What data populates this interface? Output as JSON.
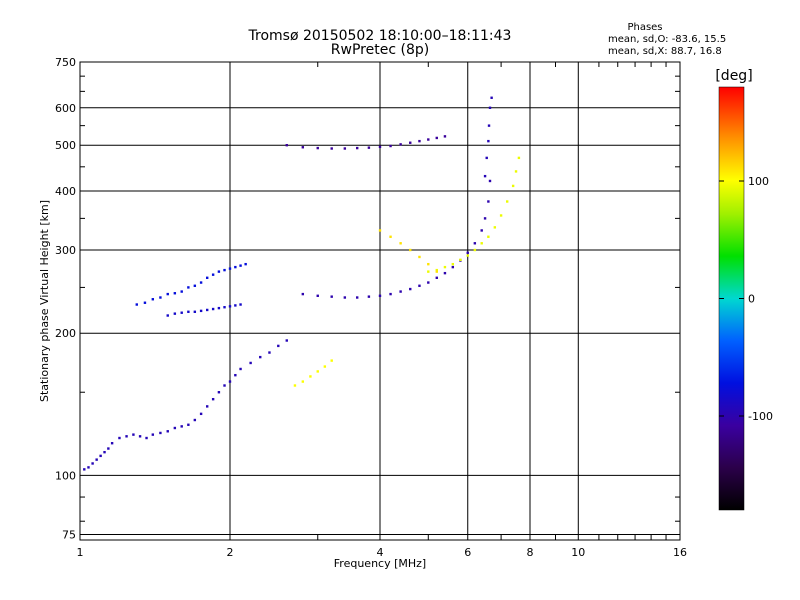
{
  "chart_data": {
    "type": "scatter",
    "title": "Tromsø 20150502 18:10:00–18:11:43",
    "subtitle": "RwPretec (8p)",
    "xlabel": "Frequency [MHz]",
    "ylabel": "Stationary phase Virtual Height [km]",
    "x_scale": "log",
    "y_scale": "log",
    "xlim": [
      1,
      16
    ],
    "ylim": [
      73,
      750
    ],
    "x_ticks": [
      1,
      2,
      4,
      6,
      8,
      10,
      16
    ],
    "y_ticks": [
      75,
      100,
      200,
      300,
      400,
      500,
      600,
      750
    ],
    "grid": true,
    "phases_box": {
      "heading": "Phases",
      "line1": "mean, sd,O: -83.6, 15.5",
      "line2": "mean, sd,X:  88.7, 16.8"
    },
    "colorbar": {
      "label": "[deg]",
      "range": [
        -180,
        180
      ],
      "ticks": [
        100,
        0,
        -100
      ]
    },
    "series": [
      {
        "points": [
          [
            1.02,
            103
          ],
          [
            1.04,
            104
          ],
          [
            1.06,
            106
          ],
          [
            1.08,
            108
          ],
          [
            1.1,
            110
          ],
          [
            1.12,
            112
          ],
          [
            1.14,
            114
          ],
          [
            1.16,
            117
          ],
          [
            1.2,
            120
          ],
          [
            1.24,
            121
          ],
          [
            1.28,
            122
          ],
          [
            1.32,
            121
          ],
          [
            1.36,
            120
          ],
          [
            1.4,
            122
          ],
          [
            1.45,
            123
          ],
          [
            1.5,
            124
          ],
          [
            1.55,
            126
          ],
          [
            1.6,
            127
          ],
          [
            1.65,
            128
          ],
          [
            1.7,
            131
          ],
          [
            1.75,
            135
          ],
          [
            1.8,
            140
          ],
          [
            1.85,
            145
          ],
          [
            1.9,
            150
          ],
          [
            1.95,
            155
          ],
          [
            2.0,
            158
          ],
          [
            2.05,
            163
          ],
          [
            2.1,
            168
          ],
          [
            2.2,
            173
          ],
          [
            2.3,
            178
          ],
          [
            2.4,
            182
          ],
          [
            2.5,
            188
          ],
          [
            2.6,
            193
          ]
        ],
        "phase": -95
      },
      {
        "points": [
          [
            1.3,
            230
          ],
          [
            1.35,
            232
          ],
          [
            1.4,
            236
          ],
          [
            1.45,
            238
          ],
          [
            1.5,
            242
          ],
          [
            1.55,
            243
          ],
          [
            1.6,
            245
          ],
          [
            1.65,
            250
          ],
          [
            1.7,
            252
          ],
          [
            1.75,
            256
          ],
          [
            1.8,
            262
          ],
          [
            1.85,
            266
          ],
          [
            1.9,
            270
          ],
          [
            1.95,
            272
          ],
          [
            2.0,
            274
          ],
          [
            2.05,
            276
          ],
          [
            2.1,
            278
          ],
          [
            2.15,
            280
          ]
        ],
        "phase": -75
      },
      {
        "points": [
          [
            1.5,
            218
          ],
          [
            1.55,
            220
          ],
          [
            1.6,
            221
          ],
          [
            1.65,
            222
          ],
          [
            1.7,
            222
          ],
          [
            1.75,
            223
          ],
          [
            1.8,
            224
          ],
          [
            1.85,
            225
          ],
          [
            1.9,
            226
          ],
          [
            1.95,
            227
          ],
          [
            2.0,
            228
          ],
          [
            2.05,
            229
          ],
          [
            2.1,
            230
          ]
        ],
        "phase": -85
      },
      {
        "points": [
          [
            2.8,
            242
          ],
          [
            3.0,
            240
          ],
          [
            3.2,
            239
          ],
          [
            3.4,
            238
          ],
          [
            3.6,
            238
          ],
          [
            3.8,
            239
          ],
          [
            4.0,
            240
          ],
          [
            4.2,
            242
          ],
          [
            4.4,
            245
          ],
          [
            4.6,
            248
          ],
          [
            4.8,
            252
          ],
          [
            5.0,
            256
          ],
          [
            5.2,
            262
          ],
          [
            5.4,
            268
          ],
          [
            5.6,
            276
          ],
          [
            5.8,
            285
          ],
          [
            6.0,
            296
          ],
          [
            6.2,
            310
          ],
          [
            6.4,
            330
          ],
          [
            6.5,
            350
          ],
          [
            6.6,
            380
          ],
          [
            6.65,
            420
          ]
        ],
        "phase": -100
      },
      {
        "points": [
          [
            2.6,
            500
          ],
          [
            2.8,
            495
          ],
          [
            3.0,
            493
          ],
          [
            3.2,
            492
          ],
          [
            3.4,
            492
          ],
          [
            3.6,
            493
          ],
          [
            3.8,
            494
          ],
          [
            4.0,
            496
          ],
          [
            4.2,
            498
          ],
          [
            4.4,
            502
          ],
          [
            4.6,
            506
          ],
          [
            4.8,
            510
          ],
          [
            5.0,
            514
          ],
          [
            5.2,
            518
          ],
          [
            5.4,
            522
          ]
        ],
        "phase": -110
      },
      {
        "points": [
          [
            6.5,
            430
          ],
          [
            6.55,
            470
          ],
          [
            6.6,
            510
          ],
          [
            6.62,
            550
          ],
          [
            6.65,
            600
          ],
          [
            6.7,
            630
          ]
        ],
        "phase": -95
      },
      {
        "points": [
          [
            5.0,
            270
          ],
          [
            5.2,
            272
          ],
          [
            5.4,
            276
          ],
          [
            5.6,
            280
          ],
          [
            5.8,
            286
          ],
          [
            6.0,
            292
          ],
          [
            6.2,
            300
          ],
          [
            6.4,
            310
          ],
          [
            6.6,
            320
          ],
          [
            6.8,
            335
          ],
          [
            7.0,
            355
          ],
          [
            7.2,
            380
          ],
          [
            7.4,
            410
          ],
          [
            7.5,
            440
          ],
          [
            7.6,
            470
          ]
        ],
        "phase": 95
      },
      {
        "points": [
          [
            4.0,
            330
          ],
          [
            4.2,
            320
          ],
          [
            4.4,
            310
          ],
          [
            4.6,
            300
          ],
          [
            4.8,
            290
          ],
          [
            5.0,
            280
          ],
          [
            5.2,
            270
          ]
        ],
        "phase": 110
      },
      {
        "points": [
          [
            2.7,
            155
          ],
          [
            2.8,
            158
          ],
          [
            2.9,
            162
          ],
          [
            3.0,
            166
          ],
          [
            3.1,
            170
          ],
          [
            3.2,
            175
          ]
        ],
        "phase": 100
      }
    ]
  }
}
